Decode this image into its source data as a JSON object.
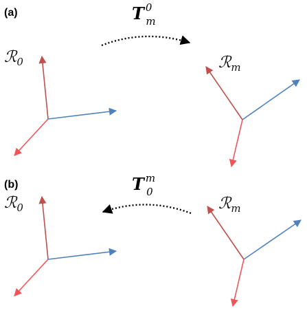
{
  "panels": [
    {
      "label": "(a)",
      "source_frame": {
        "symbol": "R",
        "subscript": "0"
      },
      "target_frame": {
        "symbol": "R",
        "subscript": "m"
      },
      "transform": {
        "symbol": "T",
        "subscript": "m",
        "superscript": "0",
        "direction": "left-to-right"
      }
    },
    {
      "label": "(b)",
      "source_frame": {
        "symbol": "R",
        "subscript": "0"
      },
      "target_frame": {
        "symbol": "R",
        "subscript": "m"
      },
      "transform": {
        "symbol": "T",
        "subscript": "0",
        "superscript": "m",
        "direction": "right-to-left"
      }
    }
  ],
  "colors": {
    "axis_dark_red": "#c0504d",
    "axis_light_red": "#f0555a",
    "axis_blue": "#4f81bd",
    "arrow_black": "#000000"
  }
}
